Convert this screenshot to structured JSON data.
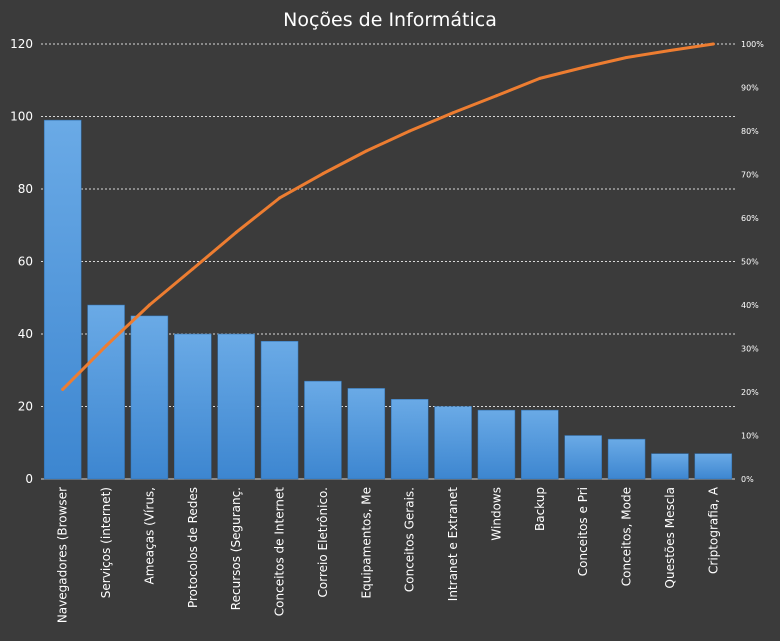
{
  "chart_data": {
    "type": "bar",
    "title": "Noções de Informática",
    "categories": [
      "Navegadores (Browser",
      "Serviços (internet)",
      "Ameaças (Vírus,",
      "Protocolos de Redes",
      "Recursos (Seguranç.",
      "Conceitos de Internet",
      "Correio Eletrônico.",
      "Equipamentos, Me",
      "Conceitos Gerais.",
      "Intranet e Extranet",
      "Windows",
      "Backup",
      "Conceitos e Pri",
      "Conceitos, Mode",
      "Questões Mescla",
      "Criptografia, A"
    ],
    "series": [
      {
        "type": "bar",
        "axis": "left",
        "values": [
          99,
          48,
          45,
          40,
          40,
          38,
          27,
          25,
          22,
          20,
          19,
          19,
          12,
          11,
          7,
          7
        ]
      },
      {
        "type": "line",
        "axis": "right",
        "values": [
          20.6,
          30.6,
          40.0,
          48.3,
          56.7,
          64.6,
          70.2,
          75.4,
          80.0,
          84.2,
          88.1,
          92.1,
          94.6,
          96.9,
          98.5,
          100
        ]
      }
    ],
    "ylim": [
      0,
      120
    ],
    "y2lim": [
      0,
      100
    ],
    "yticks": [
      "0",
      "20",
      "40",
      "60",
      "80",
      "100",
      "120"
    ],
    "y2ticks": [
      "0%",
      "10%",
      "20%",
      "30%",
      "40%",
      "50%",
      "60%",
      "70%",
      "80%",
      "90%",
      "100%"
    ],
    "grid": true,
    "colors": {
      "background": "#3b3b3b",
      "bar": "#4a8fd4",
      "bar_top": "#6aaae6",
      "line": "#ed7d31",
      "text": "#ffffff",
      "grid": "#d9d9d9"
    }
  }
}
